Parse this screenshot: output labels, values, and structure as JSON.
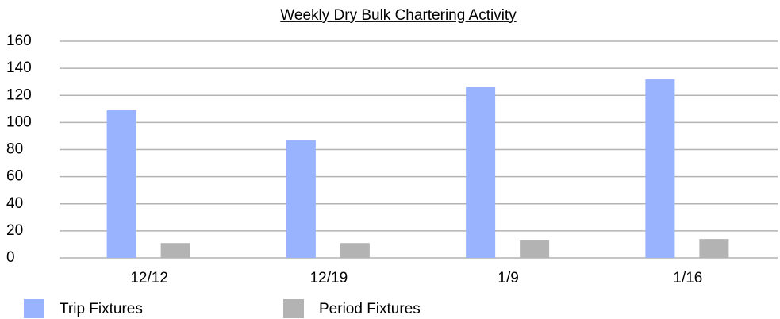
{
  "chart_data": {
    "type": "bar",
    "title": "Weekly Dry Bulk Chartering Activity",
    "categories": [
      "12/12",
      "12/19",
      "1/9",
      "1/16"
    ],
    "series": [
      {
        "name": "Trip Fixtures",
        "color": "#99b3ff",
        "values": [
          109,
          87,
          126,
          132
        ]
      },
      {
        "name": "Period Fixtures",
        "color": "#b3b3b3",
        "values": [
          11,
          11,
          13,
          14
        ]
      }
    ],
    "ylim": [
      0,
      160
    ],
    "yticks": [
      0,
      20,
      40,
      60,
      80,
      100,
      120,
      140,
      160
    ],
    "grid": true,
    "legend": "bottom"
  }
}
